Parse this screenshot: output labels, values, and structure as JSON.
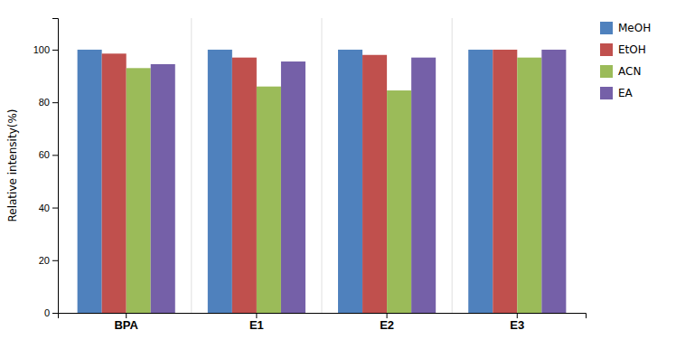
{
  "chart_data": {
    "type": "bar",
    "categories": [
      "BPA",
      "E1",
      "E2",
      "E3"
    ],
    "series": [
      {
        "name": "MeOH",
        "color": "#4F81BD",
        "values": [
          100,
          100,
          100,
          100
        ]
      },
      {
        "name": "EtOH",
        "color": "#C0504D",
        "values": [
          98.5,
          97,
          98,
          100
        ]
      },
      {
        "name": "ACN",
        "color": "#9BBB59",
        "values": [
          93,
          86,
          84.5,
          97
        ]
      },
      {
        "name": "EA",
        "color": "#7560A8",
        "values": [
          94.5,
          95.5,
          97,
          100
        ]
      }
    ],
    "ylabel": "Relative intensity(%)",
    "ylim": [
      0,
      112
    ],
    "yticks": [
      0,
      20,
      40,
      60,
      80,
      100
    ],
    "grid": false,
    "legend": "upper right"
  }
}
